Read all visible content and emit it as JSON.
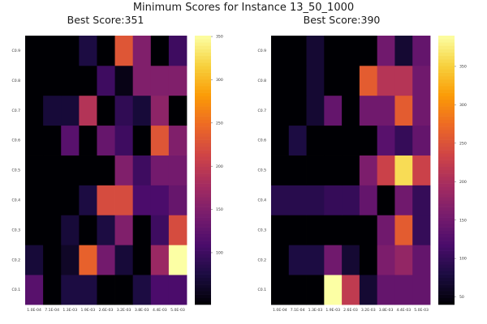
{
  "figure": {
    "title": "Minimum Scores for Instance 13_50_1000"
  },
  "chart_data": [
    {
      "type": "heatmap",
      "title": "Best Score:351",
      "x_ticks": [
        "1.0E-04",
        "7.1E-04",
        "1.3E-03",
        "1.9E-03",
        "2.6E-03",
        "3.2E-03",
        "3.8E-03",
        "4.4E-03",
        "5.0E-03"
      ],
      "y_ticks": [
        "C0.1",
        "C0.2",
        "C0.3",
        "C0.4",
        "C0.5",
        "C0.6",
        "C0.7",
        "C0.8",
        "C0.9"
      ],
      "colorbar": {
        "range": [
          40,
          351
        ],
        "ticks": [
          100,
          150,
          200,
          250,
          300,
          350
        ]
      },
      "colormap": [
        "#000004",
        "#1b0c41",
        "#4a0c6b",
        "#781c6d",
        "#a52c60",
        "#cf4446",
        "#ed6925",
        "#fb9b06",
        "#f7d13d",
        "#fcffa4"
      ],
      "values_bottom_to_top": [
        [
          120,
          40,
          75,
          75,
          40,
          40,
          75,
          110,
          110
        ],
        [
          70,
          40,
          60,
          240,
          140,
          70,
          40,
          170,
          351
        ],
        [
          40,
          40,
          70,
          40,
          75,
          150,
          40,
          100,
          220
        ],
        [
          40,
          40,
          40,
          75,
          220,
          220,
          110,
          110,
          130
        ],
        [
          40,
          40,
          40,
          40,
          40,
          150,
          100,
          140,
          140
        ],
        [
          40,
          40,
          120,
          40,
          130,
          100,
          40,
          230,
          150
        ],
        [
          40,
          70,
          70,
          190,
          40,
          90,
          70,
          160,
          40
        ],
        [
          40,
          40,
          40,
          40,
          100,
          50,
          150,
          150,
          150
        ],
        [
          40,
          40,
          40,
          75,
          40,
          230,
          150,
          40,
          100
        ]
      ]
    },
    {
      "type": "heatmap",
      "title": "Best Score:390",
      "x_ticks": [
        "1.0E-04",
        "7.1E-04",
        "1.3E-03",
        "1.9E-03",
        "2.6E-03",
        "3.2E-03",
        "3.8E-03",
        "4.4E-03",
        "5.0E-03"
      ],
      "y_ticks": [
        "C0.1",
        "C0.2",
        "C0.3",
        "C0.4",
        "C0.5",
        "C0.6",
        "C0.7",
        "C0.8",
        "C0.9"
      ],
      "colorbar": {
        "range": [
          40,
          390
        ],
        "ticks": [
          50,
          100,
          150,
          200,
          250,
          300,
          350
        ]
      },
      "colormap": [
        "#000004",
        "#1b0c41",
        "#4a0c6b",
        "#781c6d",
        "#a52c60",
        "#cf4446",
        "#ed6925",
        "#fb9b06",
        "#f7d13d",
        "#fcffa4"
      ],
      "values_bottom_to_top": [
        [
          40,
          40,
          40,
          390,
          220,
          70,
          140,
          140,
          140
        ],
        [
          40,
          80,
          80,
          150,
          70,
          40,
          160,
          180,
          140
        ],
        [
          40,
          40,
          40,
          40,
          40,
          40,
          150,
          260,
          100
        ],
        [
          90,
          90,
          90,
          100,
          100,
          140,
          40,
          150,
          100
        ],
        [
          40,
          40,
          40,
          40,
          40,
          160,
          230,
          360,
          230
        ],
        [
          40,
          80,
          40,
          40,
          40,
          40,
          130,
          100,
          140
        ],
        [
          40,
          40,
          70,
          140,
          40,
          150,
          150,
          260,
          150
        ],
        [
          40,
          40,
          70,
          40,
          40,
          260,
          210,
          210,
          150
        ],
        [
          40,
          40,
          70,
          40,
          40,
          40,
          150,
          70,
          140
        ]
      ]
    }
  ]
}
